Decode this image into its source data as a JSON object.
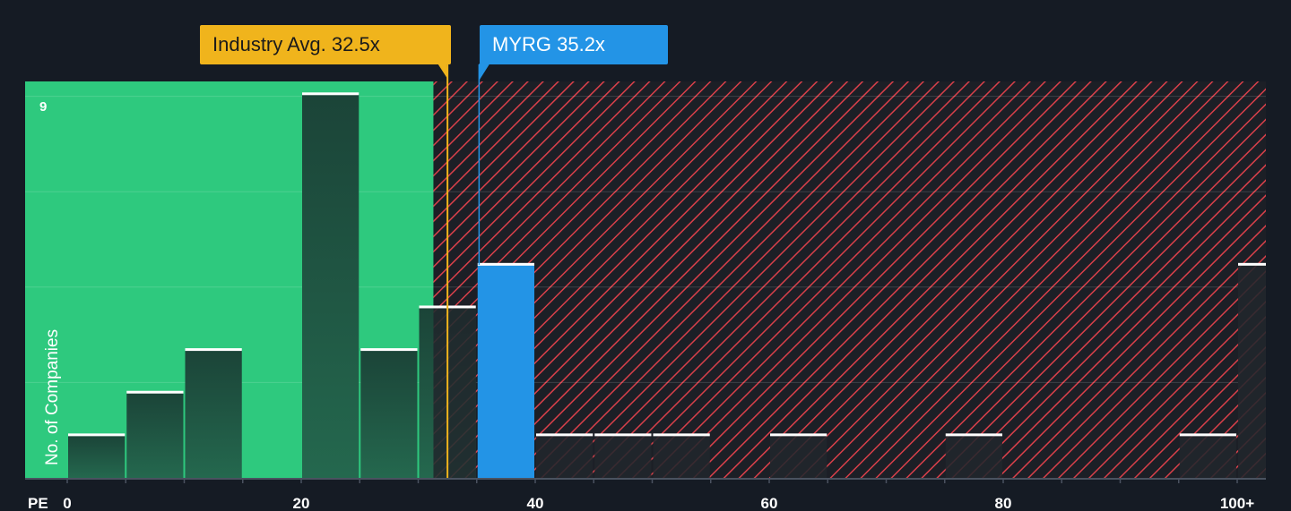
{
  "chart_data": {
    "type": "bar",
    "xlabel": "PE",
    "ylabel": "No. of Companies",
    "x_ticks": [
      "0",
      "20",
      "40",
      "60",
      "80",
      "100+"
    ],
    "y_max_label": "9",
    "ylim": [
      0,
      9.3
    ],
    "bins": [
      {
        "x0": 0,
        "x1": 5,
        "value": 1
      },
      {
        "x0": 5,
        "x1": 10,
        "value": 2
      },
      {
        "x0": 10,
        "x1": 15,
        "value": 3
      },
      {
        "x0": 15,
        "x1": 20,
        "value": 0
      },
      {
        "x0": 20,
        "x1": 25,
        "value": 9
      },
      {
        "x0": 25,
        "x1": 30,
        "value": 3
      },
      {
        "x0": 30,
        "x1": 35,
        "value": 4
      },
      {
        "x0": 35,
        "x1": 40,
        "value": 5,
        "highlight": true
      },
      {
        "x0": 40,
        "x1": 45,
        "value": 1
      },
      {
        "x0": 45,
        "x1": 50,
        "value": 1
      },
      {
        "x0": 50,
        "x1": 55,
        "value": 1
      },
      {
        "x0": 55,
        "x1": 60,
        "value": 0
      },
      {
        "x0": 60,
        "x1": 65,
        "value": 1
      },
      {
        "x0": 65,
        "x1": 70,
        "value": 0
      },
      {
        "x0": 70,
        "x1": 75,
        "value": 0
      },
      {
        "x0": 75,
        "x1": 80,
        "value": 1
      },
      {
        "x0": 80,
        "x1": 85,
        "value": 0
      },
      {
        "x0": 85,
        "x1": 90,
        "value": 0
      },
      {
        "x0": 90,
        "x1": 95,
        "value": 0
      },
      {
        "x0": 95,
        "x1": 100,
        "value": 1
      },
      {
        "x0": 100,
        "x1": 105,
        "value": 5
      }
    ],
    "industry_avg": {
      "label": "Industry Avg. 32.5x",
      "value": 32.5
    },
    "company": {
      "label": "MYRG 35.2x",
      "value": 35.2
    },
    "undervalued_boundary": 31.3,
    "colors": {
      "background": "#151b24",
      "undervalued_zone": "#2ec97e",
      "overvalued_hatch": "#d9404a",
      "bar": "#1e4a3c",
      "highlight_bar": "#2394e6",
      "industry": "#f0b41c",
      "company": "#2394e6"
    }
  }
}
